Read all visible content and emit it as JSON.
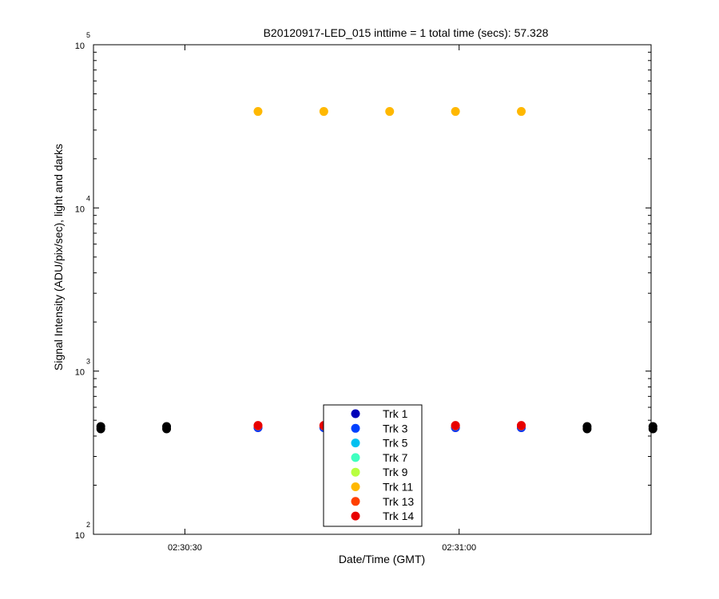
{
  "chart_data": {
    "type": "scatter",
    "title": "B20120917-LED_015 inttime = 1 total time (secs): 57.328",
    "xlabel": "Date/Time (GMT)",
    "ylabel": "Signal Intensity (ADU/pix/sec), light and darks",
    "yscale": "log",
    "ylim": [
      100,
      100000
    ],
    "xlim": [
      "02:30:20",
      "02:31:21"
    ],
    "x_ticks": [
      "02:30:30",
      "02:31:00"
    ],
    "y_ticks": [
      {
        "value": 100,
        "base": "10",
        "exp": "2"
      },
      {
        "value": 1000,
        "base": "10",
        "exp": "3"
      },
      {
        "value": 10000,
        "base": "10",
        "exp": "4"
      },
      {
        "value": 100000,
        "base": "10",
        "exp": "5"
      }
    ],
    "grid": false,
    "legend_position": "bottom-center",
    "series": [
      {
        "name": "Trk 1",
        "color": "#0000b8",
        "x": [
          "02:30:38.0",
          "02:30:45.2",
          "02:30:52.4",
          "02:30:59.6",
          "02:31:06.8"
        ],
        "y": [
          450,
          450,
          450,
          450,
          450
        ]
      },
      {
        "name": "Trk 3",
        "color": "#0040ff",
        "x": [
          "02:30:38.0",
          "02:30:45.2",
          "02:30:52.4",
          "02:30:59.6",
          "02:31:06.8"
        ],
        "y": [
          452,
          452,
          452,
          452,
          452
        ]
      },
      {
        "name": "Trk 5",
        "color": "#00c0f0",
        "x": [],
        "y": []
      },
      {
        "name": "Trk 7",
        "color": "#40ffc0",
        "x": [],
        "y": []
      },
      {
        "name": "Trk 9",
        "color": "#b8ff40",
        "x": [],
        "y": []
      },
      {
        "name": "Trk 11",
        "color": "#ffb800",
        "x": [
          "02:30:38.0",
          "02:30:45.2",
          "02:30:52.4",
          "02:30:59.6",
          "02:31:06.8"
        ],
        "y": [
          39000,
          39000,
          39000,
          39000,
          39000
        ]
      },
      {
        "name": "Trk 13",
        "color": "#ff4000",
        "x": [
          "02:30:38.0",
          "02:30:45.2",
          "02:30:52.4",
          "02:30:59.6",
          "02:31:06.8"
        ],
        "y": [
          462,
          462,
          462,
          462,
          462
        ]
      },
      {
        "name": "Trk 14",
        "color": "#e80000",
        "x": [
          "02:30:38.0",
          "02:30:45.2",
          "02:30:52.4",
          "02:30:59.6",
          "02:31:06.8"
        ],
        "y": [
          465,
          465,
          465,
          465,
          465
        ]
      }
    ],
    "dark_points": {
      "color": "#000000",
      "x": [
        "02:30:20.8",
        "02:30:28.0",
        "02:31:14.0",
        "02:31:21.2"
      ],
      "y": [
        450,
        450,
        450,
        450
      ]
    }
  }
}
